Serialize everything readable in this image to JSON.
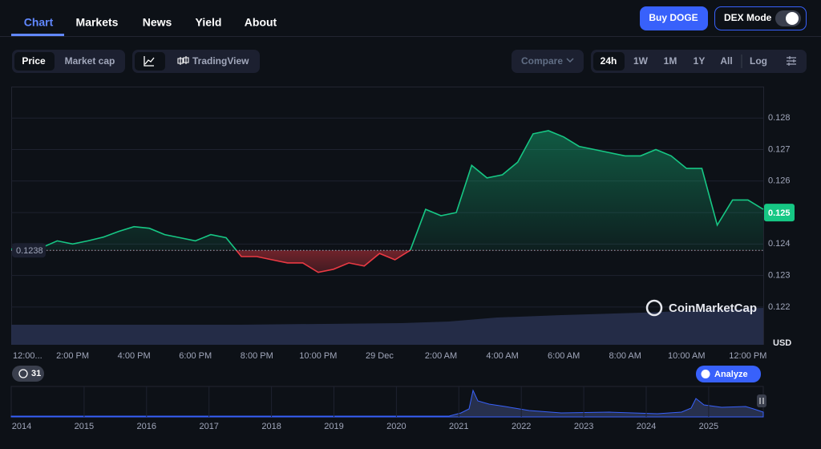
{
  "nav": {
    "tabs": [
      "Chart",
      "Markets",
      "News",
      "Yield",
      "About"
    ],
    "buy_button": "Buy DOGE",
    "dex_mode": "DEX Mode"
  },
  "toolbar": {
    "metrics": [
      "Price",
      "Market cap"
    ],
    "tradingview": "TradingView",
    "compare": "Compare",
    "ranges": [
      "24h",
      "1W",
      "1M",
      "1Y",
      "All"
    ],
    "log": "Log"
  },
  "chart_data": {
    "type": "line",
    "categories": [
      "12:00...",
      null,
      null,
      null,
      "2:00 PM",
      null,
      null,
      null,
      "4:00 PM",
      null,
      null,
      null,
      "6:00 PM",
      null,
      null,
      null,
      "8:00 PM",
      null,
      null,
      null,
      "10:00 PM",
      null,
      null,
      null,
      "29 Dec",
      null,
      null,
      null,
      "2:00 AM",
      null,
      null,
      null,
      "4:00 AM",
      null,
      null,
      null,
      "6:00 AM",
      null,
      null,
      null,
      "8:00 AM",
      null,
      null,
      null,
      "10:00 AM",
      null,
      null,
      null,
      "12:00 PM",
      null
    ],
    "values": [
      0.12384,
      0.1238,
      0.12389,
      0.1241,
      0.124,
      0.1241,
      0.12422,
      0.1244,
      0.12455,
      0.1245,
      0.1243,
      0.1242,
      0.1241,
      0.1243,
      0.1242,
      0.1236,
      0.1236,
      0.1235,
      0.1234,
      0.1234,
      0.1231,
      0.1232,
      0.1234,
      0.1233,
      0.1237,
      0.1235,
      0.1238,
      0.1251,
      0.1249,
      0.125,
      0.1265,
      0.1261,
      0.1262,
      0.1266,
      0.1275,
      0.1276,
      0.1274,
      0.1271,
      0.127,
      0.1269,
      0.1268,
      0.1268,
      0.127,
      0.1268,
      0.1264,
      0.1264,
      0.1246,
      0.1254,
      0.1254,
      0.1251
    ],
    "ylim": [
      0.1208,
      0.129
    ],
    "yticks": [
      0.122,
      0.123,
      0.124,
      0.125,
      0.126,
      0.127,
      0.128
    ],
    "grid": true,
    "baseline": 0.1238,
    "last_price": 0.125,
    "up_color": "#16c784",
    "down_color": "#ea3943",
    "y_unit": "USD",
    "watermark": "CoinMarketCap"
  },
  "footer": {
    "events": 31,
    "analyze": "Analyze",
    "years": [
      "2014",
      "2015",
      "2016",
      "2017",
      "2018",
      "2019",
      "2020",
      "2021",
      "2022",
      "2023",
      "2024",
      "2025"
    ]
  }
}
